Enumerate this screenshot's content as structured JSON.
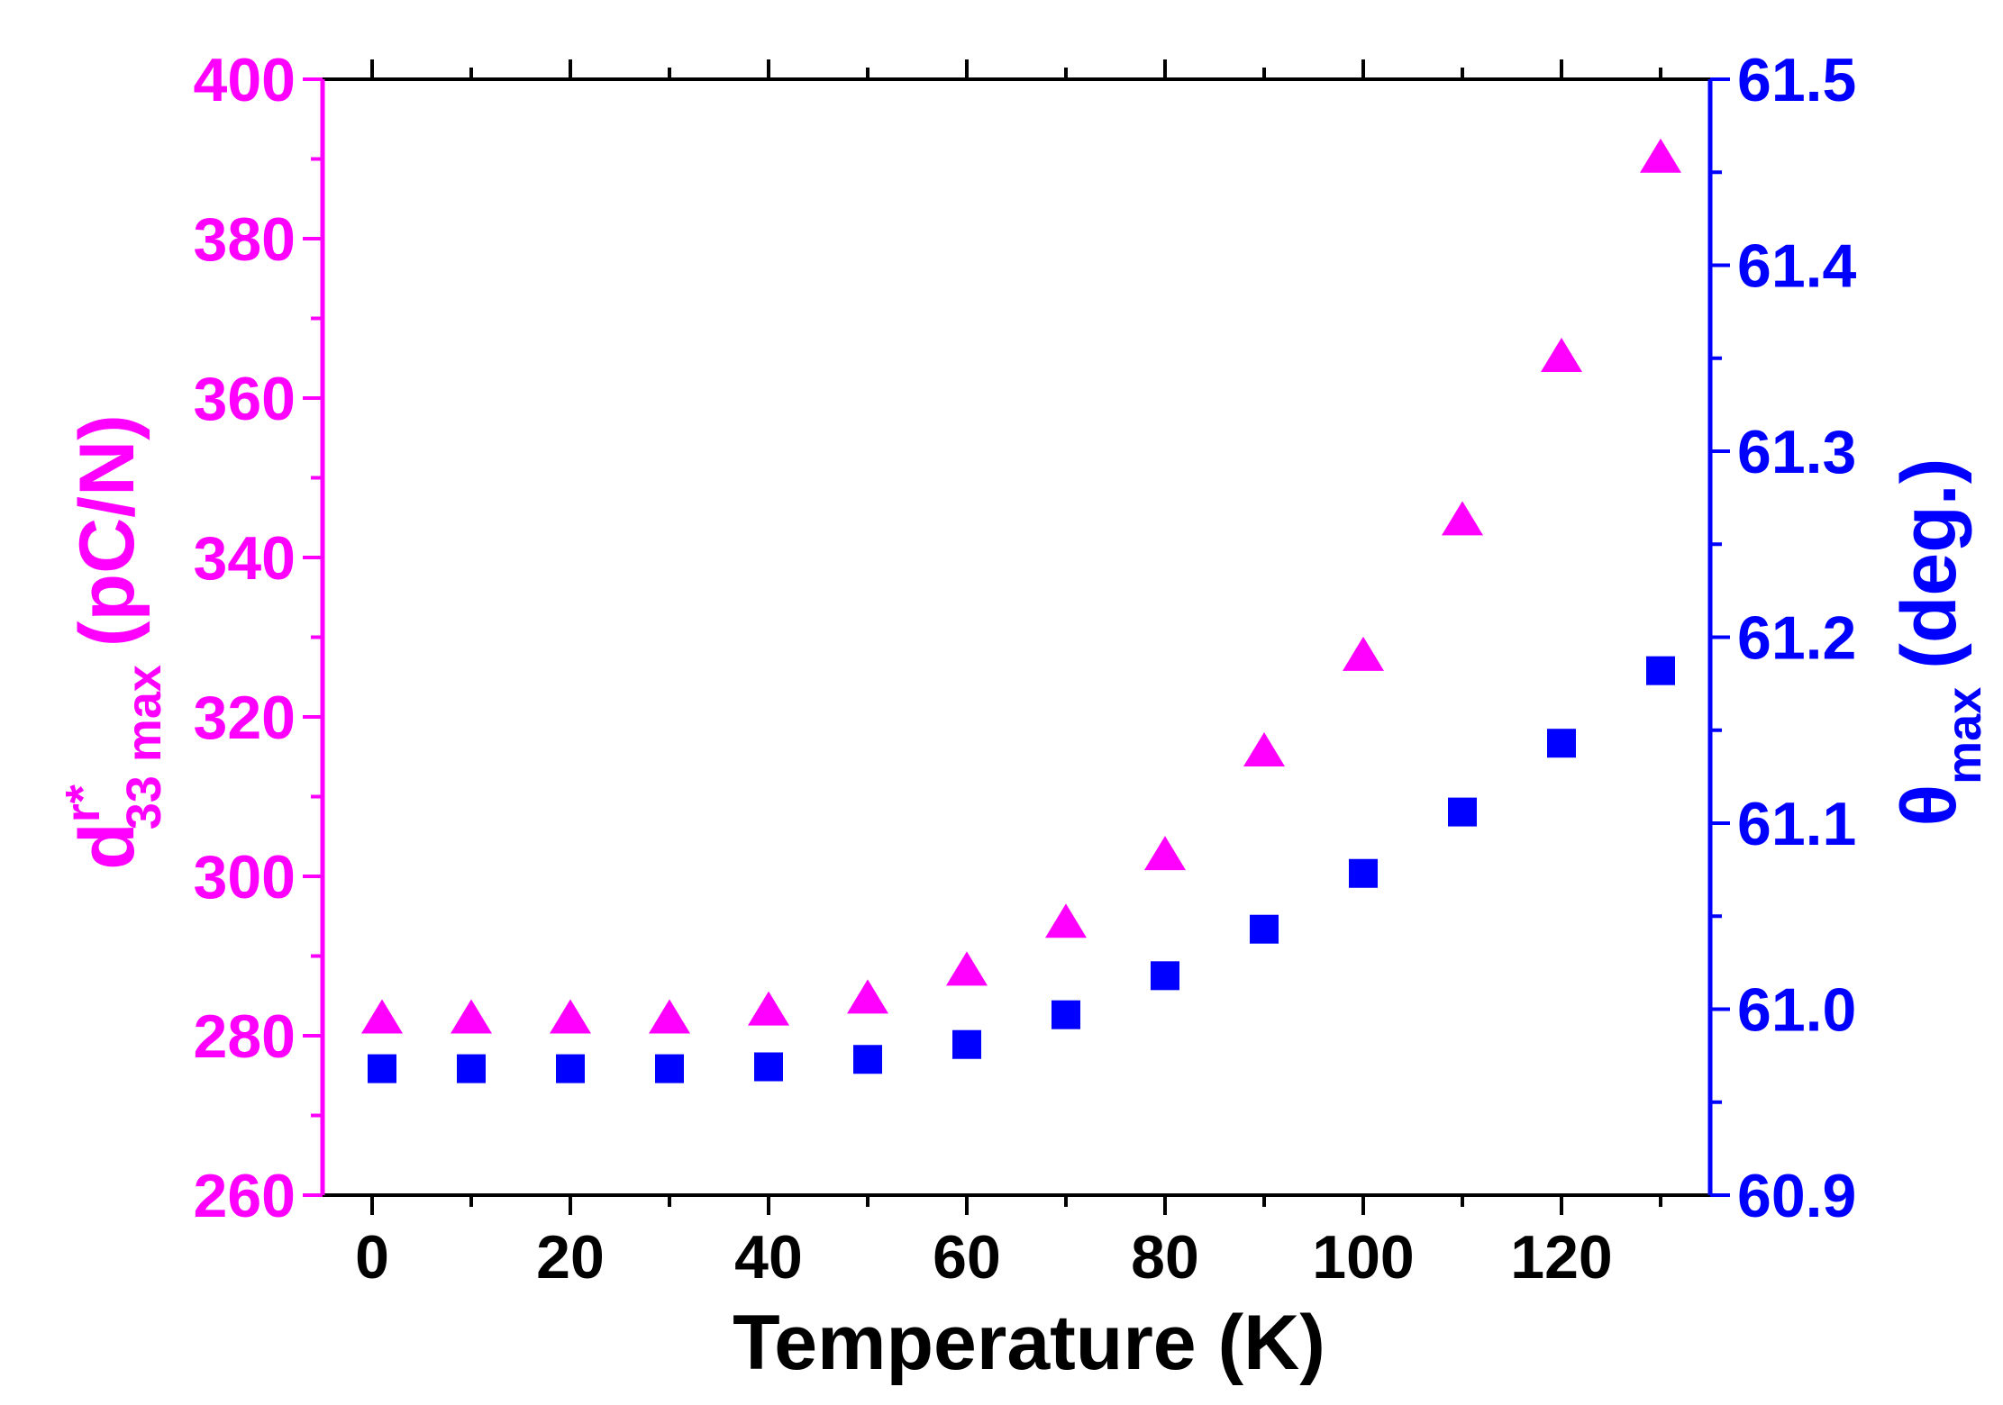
{
  "chart_data": {
    "type": "scatter",
    "xlabel": "Temperature (K)",
    "ylabel_left": {
      "main": "d",
      "sup": "r*",
      "sub": "33 max",
      "unit": "(pC/N)"
    },
    "ylabel_right": {
      "main": "θ",
      "sub": "max",
      "unit": "(deg.)"
    },
    "xlim": [
      -5,
      135
    ],
    "ylim_left": [
      260,
      400
    ],
    "ylim_right": [
      60.9,
      61.5
    ],
    "x_ticks": [
      "0",
      "20",
      "40",
      "60",
      "80",
      "100",
      "120"
    ],
    "y_left_ticks": [
      "260",
      "280",
      "300",
      "320",
      "340",
      "360",
      "380",
      "400"
    ],
    "y_right_ticks": [
      "60.9",
      "61.0",
      "61.1",
      "61.2",
      "61.3",
      "61.4",
      "61.5"
    ],
    "colors": {
      "left_axis": "#ff00ff",
      "right_axis": "#0000ff",
      "x_axis": "#000000"
    },
    "grid": false,
    "series": [
      {
        "axis": "left",
        "marker": "triangle",
        "color": "#ff00ff",
        "x": [
          1,
          10,
          20,
          30,
          40,
          50,
          60,
          70,
          80,
          90,
          100,
          110,
          120,
          130
        ],
        "y": [
          282,
          282,
          282,
          282,
          283,
          284.5,
          288,
          294,
          302.5,
          315.5,
          327.5,
          344.5,
          365,
          390
        ]
      },
      {
        "axis": "right",
        "marker": "square",
        "color": "#0000ff",
        "x": [
          1,
          10,
          20,
          30,
          40,
          50,
          60,
          70,
          80,
          90,
          100,
          110,
          120,
          130
        ],
        "y": [
          60.968,
          60.968,
          60.968,
          60.968,
          60.969,
          60.973,
          60.981,
          60.997,
          61.018,
          61.043,
          61.073,
          61.106,
          61.143,
          61.182
        ]
      }
    ]
  }
}
